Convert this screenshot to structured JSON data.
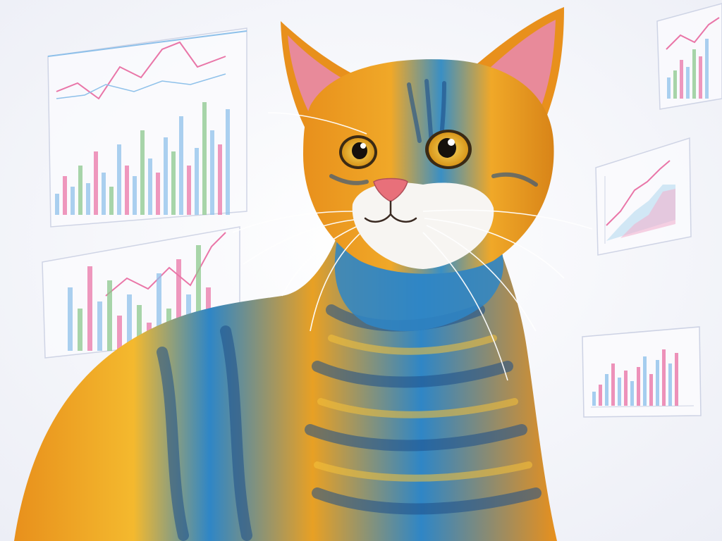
{
  "scene": {
    "subject": "cat-illustration",
    "icons": [
      "cat-illustration",
      "background-chart-sketch"
    ]
  },
  "palette": {
    "background": "#f6f7fb",
    "fur_orange": "#e8901c",
    "fur_yellow": "#f4b92e",
    "fur_blue": "#2f86c6",
    "fur_dark_blue": "#1e4f8a",
    "ear_pink": "#e88a9a",
    "nose_pink": "#e8707a",
    "eye_yellow": "#e8b52a",
    "chart_pink": "#e8609a",
    "chart_blue": "#7db8e8",
    "chart_green": "#7ac07a",
    "chart_line": "#c9cfe2"
  }
}
